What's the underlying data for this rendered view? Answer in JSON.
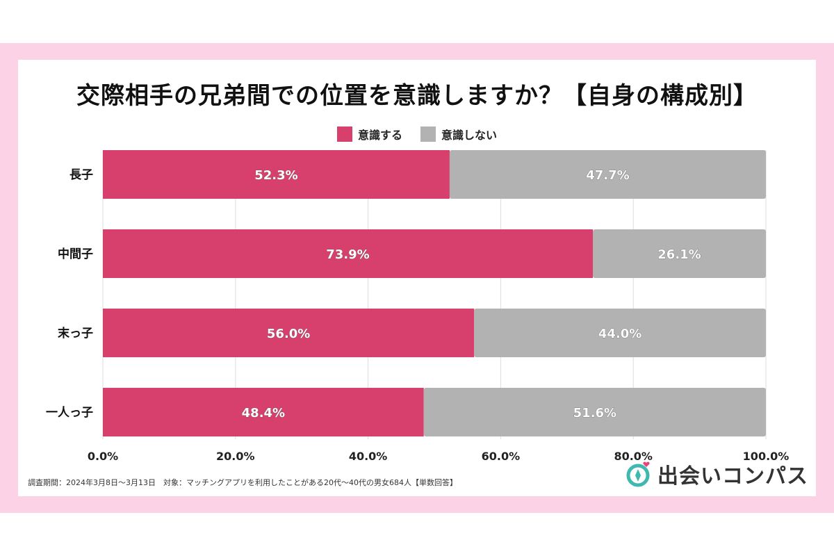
{
  "title": "交際相手の兄弟間での位置を意識しますか？【自身の構成別】",
  "note": "調査期間：2024年3月8日〜3月13日　対象：マッチングアプリを利用したことがある20代〜40代の男女684人【単数回答】",
  "logo": {
    "text": "出会いコンパス",
    "icon": "compass-heart-icon"
  },
  "colors": {
    "aware": "#d73f6c",
    "not_aware": "#b2b2b2",
    "accent": "#fcd3e6"
  },
  "chart_data": {
    "type": "bar",
    "orientation": "horizontal",
    "stacked": true,
    "categories": [
      "長子",
      "中間子",
      "末っ子",
      "一人っ子"
    ],
    "series": [
      {
        "name": "意識する",
        "values": [
          52.3,
          73.9,
          56.0,
          48.4
        ],
        "labels": [
          "52.3%",
          "73.9%",
          "56.0%",
          "48.4%"
        ]
      },
      {
        "name": "意識しない",
        "values": [
          47.7,
          26.1,
          44.0,
          51.6
        ],
        "labels": [
          "47.7%",
          "26.1%",
          "44.0%",
          "51.6%"
        ]
      }
    ],
    "xlim": [
      0,
      100
    ],
    "xticks": [
      "0.0%",
      "20.0%",
      "40.0%",
      "60.0%",
      "80.0%",
      "100.0%"
    ],
    "grid": true,
    "legend": "top-center"
  }
}
